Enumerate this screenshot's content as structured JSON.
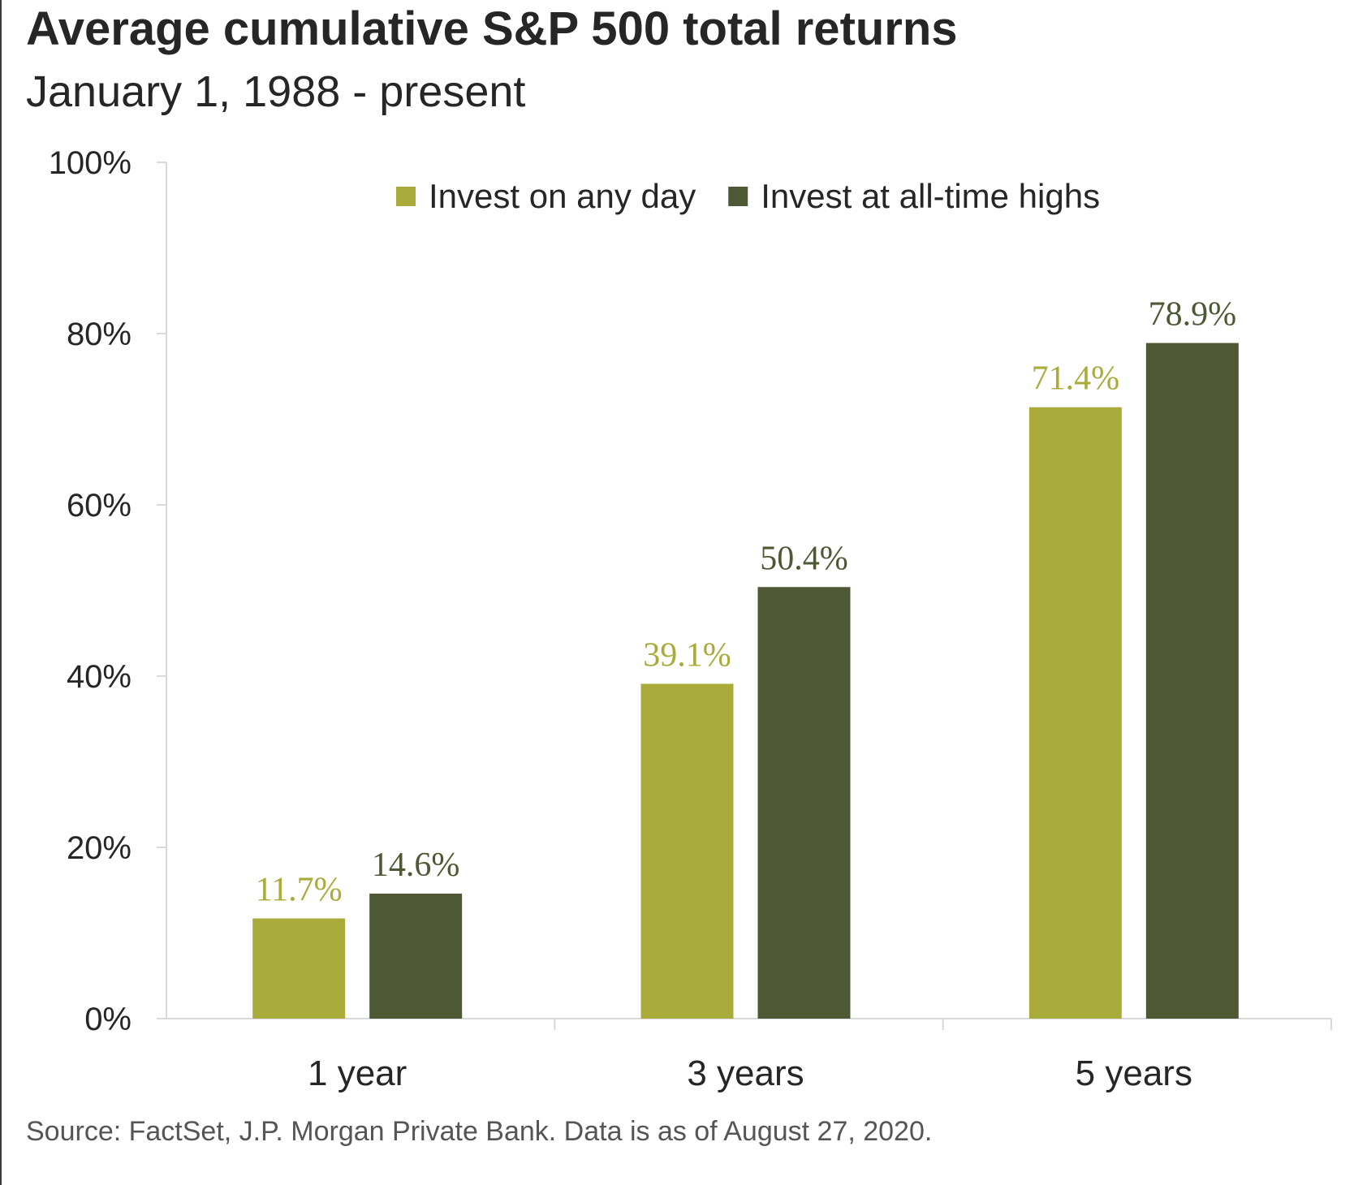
{
  "header": {
    "title": "Average cumulative S&P 500 total returns",
    "subtitle": "January 1, 1988 - present"
  },
  "footer": {
    "source": "Source: FactSet, J.P. Morgan Private Bank. Data is as of August 27, 2020."
  },
  "colors": {
    "any_day": "#a9ac3a",
    "all_time_highs": "#4e5834",
    "axis": "#d9d9d9"
  },
  "chart_data": {
    "type": "bar",
    "title": "Average cumulative S&P 500 total returns",
    "subtitle": "January 1, 1988 - present",
    "categories": [
      "1 year",
      "3 years",
      "5 years"
    ],
    "series": [
      {
        "name": "Invest on any day",
        "values": [
          11.7,
          39.1,
          71.4
        ],
        "labels": [
          "11.7%",
          "39.1%",
          "71.4%"
        ],
        "color": "#a9ac3a"
      },
      {
        "name": "Invest at all-time highs",
        "values": [
          14.6,
          50.4,
          78.9
        ],
        "labels": [
          "14.6%",
          "50.4%",
          "78.9%"
        ],
        "color": "#4e5834"
      }
    ],
    "ylim": [
      0,
      100
    ],
    "yticks": [
      0,
      20,
      40,
      60,
      80,
      100
    ],
    "ytick_labels": [
      "0%",
      "20%",
      "40%",
      "60%",
      "80%",
      "100%"
    ],
    "xlabel": "",
    "ylabel": "",
    "grid": false,
    "legend_position": "top-center"
  }
}
